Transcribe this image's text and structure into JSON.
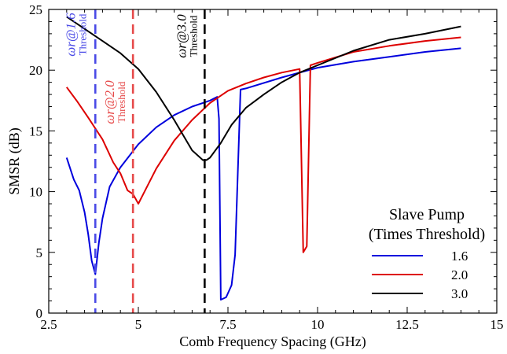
{
  "chart_data": {
    "type": "line",
    "title": "",
    "xlabel": "Comb Frequency Spacing (GHz)",
    "ylabel": "SMSR (dB)",
    "xlim": [
      2.5,
      15
    ],
    "ylim": [
      0,
      25
    ],
    "xticks": [
      2.5,
      5,
      7.5,
      10,
      12.5,
      15
    ],
    "xtick_labels": [
      "2.5",
      "5",
      "7.5",
      "10",
      "12.5",
      "15"
    ],
    "yticks": [
      0,
      5,
      10,
      15,
      20,
      25
    ],
    "ytick_labels": [
      "0",
      "5",
      "10",
      "15",
      "20",
      "25"
    ],
    "grid": false,
    "legend": {
      "title_line1": "Slave Pump",
      "title_line2": "(Times Threshold)",
      "placement": "bottom-right"
    },
    "series": [
      {
        "name": "1.6",
        "color": "#0000dd",
        "x": [
          3.0,
          3.2,
          3.35,
          3.5,
          3.6,
          3.7,
          3.8,
          3.9,
          4.0,
          4.2,
          4.5,
          5.0,
          5.5,
          6.0,
          6.5,
          7.0,
          7.2,
          7.25,
          7.3,
          7.45,
          7.6,
          7.7,
          7.85,
          8.0,
          9.0,
          10.0,
          11.0,
          12.0,
          13.0,
          14.0
        ],
        "y": [
          12.8,
          11.0,
          10.1,
          8.3,
          6.5,
          4.3,
          3.2,
          5.8,
          7.8,
          10.4,
          12.0,
          13.9,
          15.3,
          16.3,
          17.0,
          17.5,
          17.8,
          16.0,
          1.1,
          1.3,
          2.3,
          4.8,
          18.4,
          18.5,
          19.4,
          20.2,
          20.7,
          21.1,
          21.5,
          21.8
        ]
      },
      {
        "name": "2.0",
        "color": "#dd0000",
        "x": [
          3.0,
          3.3,
          3.6,
          4.0,
          4.3,
          4.5,
          4.7,
          4.85,
          5.0,
          5.5,
          6.0,
          6.5,
          7.0,
          7.5,
          8.0,
          8.5,
          9.0,
          9.5,
          9.6,
          9.7,
          9.8,
          10.0,
          11.0,
          12.0,
          13.0,
          14.0
        ],
        "y": [
          18.6,
          17.4,
          16.1,
          14.3,
          12.4,
          11.5,
          10.1,
          9.8,
          9.0,
          11.9,
          14.2,
          15.9,
          17.3,
          18.3,
          18.9,
          19.4,
          19.8,
          20.1,
          5.0,
          5.5,
          20.4,
          20.6,
          21.5,
          22.0,
          22.4,
          22.7
        ]
      },
      {
        "name": "3.0",
        "color": "#000000",
        "x": [
          3.0,
          3.5,
          4.0,
          4.5,
          5.0,
          5.5,
          6.0,
          6.5,
          6.8,
          6.9,
          7.0,
          7.3,
          7.6,
          8.0,
          8.5,
          9.0,
          9.5,
          10.0,
          11.0,
          12.0,
          13.0,
          14.0
        ],
        "y": [
          24.4,
          23.4,
          22.4,
          21.4,
          20.1,
          18.2,
          15.9,
          13.4,
          12.6,
          12.6,
          12.8,
          14.0,
          15.5,
          16.9,
          18.0,
          19.0,
          19.8,
          20.4,
          21.6,
          22.5,
          23.0,
          23.6
        ]
      }
    ],
    "thresholds": [
      {
        "x": 3.8,
        "color": "#4a4ae6",
        "label": "ωr@1.6",
        "sub": "Threshold"
      },
      {
        "x": 4.85,
        "color": "#e64a4a",
        "label": "ωr@2.0",
        "sub": "Threshold"
      },
      {
        "x": 6.85,
        "color": "#000000",
        "label": "ωr@3.0",
        "sub": "Threshold"
      }
    ]
  }
}
